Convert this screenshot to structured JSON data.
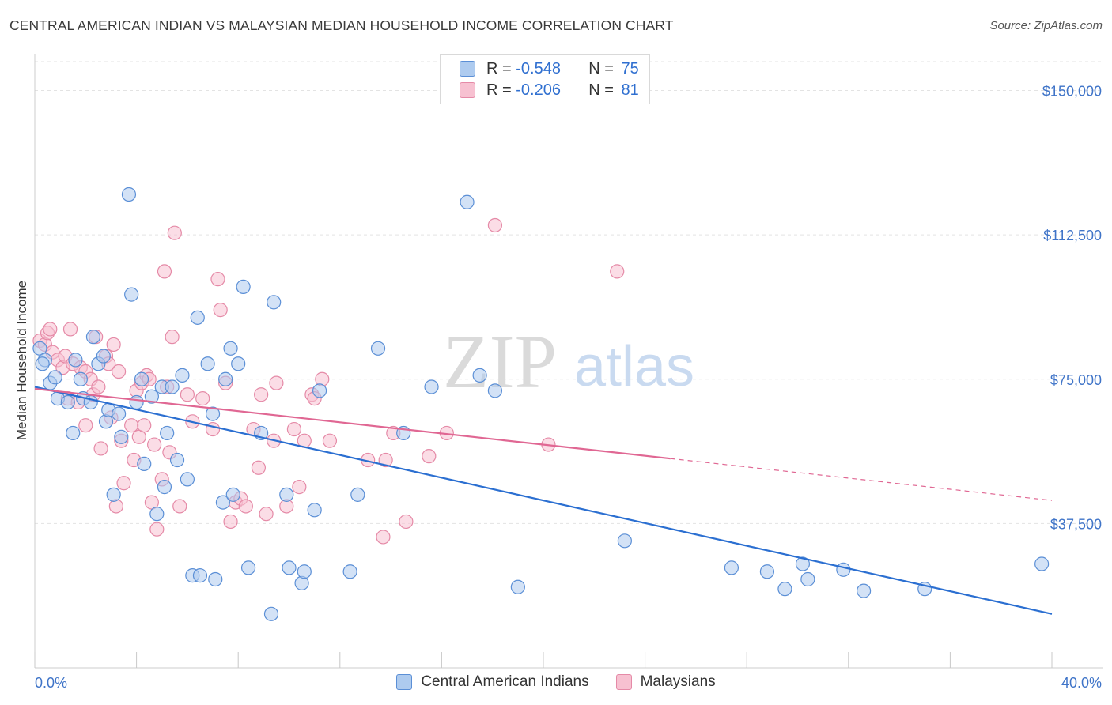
{
  "title": "CENTRAL AMERICAN INDIAN VS MALAYSIAN MEDIAN HOUSEHOLD INCOME CORRELATION CHART",
  "source": "Source: ZipAtlas.com",
  "watermark": {
    "zip": "ZIP",
    "atlas": "atlas"
  },
  "legend": {
    "rows": [
      {
        "r_label": "R = ",
        "r_value": "-0.548",
        "n_label": "N = ",
        "n_value": "75"
      },
      {
        "r_label": "R = ",
        "r_value": "-0.206",
        "n_label": "N = ",
        "n_value": "81"
      }
    ]
  },
  "colors": {
    "blue_fill": "#aecbef",
    "blue_stroke": "#5b8fd6",
    "blue_line": "#2b6fd1",
    "pink_fill": "#f7c1d1",
    "pink_stroke": "#e58aa7",
    "pink_line": "#e06793",
    "axis_label": "#3f74c8",
    "grid": "#e3e3e3"
  },
  "chart_data": {
    "type": "scatter",
    "title": "CENTRAL AMERICAN INDIAN VS MALAYSIAN MEDIAN HOUSEHOLD INCOME CORRELATION CHART",
    "xlabel": "",
    "ylabel": "Median Household Income",
    "xlim": [
      0,
      40
    ],
    "ylim": [
      0,
      157500
    ],
    "x_tick_labels": [
      "0.0%",
      "40.0%"
    ],
    "y_ticks": [
      37500,
      75000,
      112500,
      150000
    ],
    "y_tick_labels": [
      "$37,500",
      "$75,000",
      "$112,500",
      "$150,000"
    ],
    "grid": true,
    "legend_position": "top-center",
    "series": [
      {
        "name": "Central American Indians",
        "color": "#5b8fd6",
        "trend": {
          "x0": 0,
          "y0": 73000,
          "x1": 40,
          "y1": 14000,
          "dashed_from": null
        },
        "points": [
          [
            0.2,
            83000
          ],
          [
            0.4,
            80000
          ],
          [
            0.6,
            74000
          ],
          [
            0.8,
            75500
          ],
          [
            0.9,
            70000
          ],
          [
            1.3,
            69000
          ],
          [
            1.5,
            61000
          ],
          [
            1.6,
            80000
          ],
          [
            1.8,
            75000
          ],
          [
            1.9,
            70000
          ],
          [
            2.2,
            69000
          ],
          [
            2.3,
            86000
          ],
          [
            2.5,
            79000
          ],
          [
            2.7,
            81000
          ],
          [
            2.8,
            64000
          ],
          [
            2.9,
            67000
          ],
          [
            3.1,
            45000
          ],
          [
            3.3,
            66000
          ],
          [
            3.4,
            60000
          ],
          [
            3.7,
            123000
          ],
          [
            3.8,
            97000
          ],
          [
            4.0,
            69000
          ],
          [
            4.2,
            75000
          ],
          [
            4.3,
            53000
          ],
          [
            4.6,
            70500
          ],
          [
            4.8,
            40000
          ],
          [
            5.0,
            73000
          ],
          [
            5.1,
            47000
          ],
          [
            5.2,
            61000
          ],
          [
            5.4,
            73000
          ],
          [
            5.6,
            54000
          ],
          [
            5.8,
            76000
          ],
          [
            6.0,
            49000
          ],
          [
            6.2,
            24000
          ],
          [
            6.5,
            24000
          ],
          [
            6.8,
            79000
          ],
          [
            7.0,
            66000
          ],
          [
            6.4,
            91000
          ],
          [
            7.1,
            23000
          ],
          [
            7.4,
            43000
          ],
          [
            7.5,
            75000
          ],
          [
            7.7,
            83000
          ],
          [
            7.8,
            45000
          ],
          [
            8.0,
            79000
          ],
          [
            8.2,
            99000
          ],
          [
            8.4,
            26000
          ],
          [
            8.9,
            61000
          ],
          [
            9.3,
            14000
          ],
          [
            9.4,
            95000
          ],
          [
            9.9,
            45000
          ],
          [
            10.0,
            26000
          ],
          [
            10.5,
            22000
          ],
          [
            10.6,
            25000
          ],
          [
            11.0,
            41000
          ],
          [
            11.2,
            72000
          ],
          [
            12.4,
            25000
          ],
          [
            12.7,
            45000
          ],
          [
            13.5,
            83000
          ],
          [
            14.5,
            61000
          ],
          [
            15.6,
            73000
          ],
          [
            17.0,
            121000
          ],
          [
            17.5,
            76000
          ],
          [
            18.1,
            72000
          ],
          [
            19.0,
            21000
          ],
          [
            23.2,
            33000
          ],
          [
            27.4,
            26000
          ],
          [
            28.8,
            25000
          ],
          [
            29.5,
            20500
          ],
          [
            30.2,
            27000
          ],
          [
            30.4,
            23000
          ],
          [
            31.8,
            25500
          ],
          [
            32.6,
            20000
          ],
          [
            35.0,
            20500
          ],
          [
            39.6,
            27000
          ],
          [
            0.3,
            79000
          ]
        ]
      },
      {
        "name": "Malaysians",
        "color": "#e58aa7",
        "trend": {
          "x0": 0,
          "y0": 72500,
          "x1": 40,
          "y1": 43500,
          "dashed_from": 25
        },
        "points": [
          [
            0.2,
            85000
          ],
          [
            0.4,
            84000
          ],
          [
            0.5,
            87000
          ],
          [
            0.6,
            88000
          ],
          [
            0.7,
            82000
          ],
          [
            0.9,
            80000
          ],
          [
            1.1,
            78000
          ],
          [
            1.2,
            81000
          ],
          [
            1.3,
            70000
          ],
          [
            1.4,
            88000
          ],
          [
            1.5,
            79000
          ],
          [
            1.7,
            69000
          ],
          [
            1.8,
            78000
          ],
          [
            2.0,
            77000
          ],
          [
            2.0,
            63000
          ],
          [
            2.2,
            75000
          ],
          [
            2.3,
            71000
          ],
          [
            2.4,
            86000
          ],
          [
            2.5,
            73000
          ],
          [
            2.6,
            57000
          ],
          [
            2.8,
            81000
          ],
          [
            2.9,
            79000
          ],
          [
            3.0,
            65000
          ],
          [
            3.1,
            84000
          ],
          [
            3.2,
            42000
          ],
          [
            3.3,
            77000
          ],
          [
            3.4,
            59000
          ],
          [
            3.5,
            48000
          ],
          [
            3.8,
            63000
          ],
          [
            3.9,
            54000
          ],
          [
            4.0,
            72000
          ],
          [
            4.1,
            60000
          ],
          [
            4.2,
            74000
          ],
          [
            4.3,
            63000
          ],
          [
            4.4,
            76000
          ],
          [
            4.5,
            75000
          ],
          [
            4.6,
            43000
          ],
          [
            4.7,
            58000
          ],
          [
            4.8,
            36000
          ],
          [
            5.0,
            49000
          ],
          [
            5.1,
            103000
          ],
          [
            5.2,
            73000
          ],
          [
            5.3,
            56000
          ],
          [
            5.4,
            86000
          ],
          [
            5.5,
            113000
          ],
          [
            5.7,
            42000
          ],
          [
            6.0,
            71000
          ],
          [
            6.2,
            64000
          ],
          [
            6.6,
            70000
          ],
          [
            7.0,
            62000
          ],
          [
            7.2,
            101000
          ],
          [
            7.3,
            93000
          ],
          [
            7.5,
            74000
          ],
          [
            7.7,
            38000
          ],
          [
            7.9,
            43000
          ],
          [
            8.1,
            44000
          ],
          [
            8.3,
            42000
          ],
          [
            8.6,
            62000
          ],
          [
            8.8,
            52000
          ],
          [
            8.9,
            71000
          ],
          [
            9.1,
            40000
          ],
          [
            9.4,
            59000
          ],
          [
            9.5,
            74000
          ],
          [
            9.9,
            42000
          ],
          [
            10.2,
            62000
          ],
          [
            10.4,
            47000
          ],
          [
            10.6,
            59000
          ],
          [
            10.9,
            71000
          ],
          [
            11.0,
            70000
          ],
          [
            11.3,
            75000
          ],
          [
            11.6,
            59000
          ],
          [
            13.1,
            54000
          ],
          [
            13.7,
            34000
          ],
          [
            13.8,
            54000
          ],
          [
            14.1,
            61000
          ],
          [
            14.6,
            38000
          ],
          [
            15.5,
            55000
          ],
          [
            16.2,
            61000
          ],
          [
            18.1,
            115000
          ],
          [
            20.2,
            58000
          ],
          [
            22.9,
            103000
          ]
        ]
      }
    ]
  },
  "bottom_legend": [
    "Central American Indians",
    "Malaysians"
  ]
}
